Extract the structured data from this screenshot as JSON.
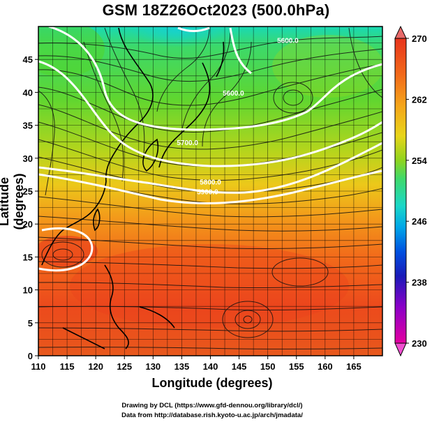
{
  "title": "GSM 18Z26Oct2023 (500.0hPa)",
  "xaxis": {
    "label": "Longitude (degrees)",
    "range": [
      110,
      170
    ],
    "ticks": [
      "110",
      "115",
      "120",
      "125",
      "130",
      "135",
      "140",
      "145",
      "150",
      "155",
      "160",
      "165"
    ]
  },
  "yaxis": {
    "label": "Latitude  (degrees)",
    "range": [
      0,
      50
    ],
    "ticks": [
      "0",
      "5",
      "10",
      "15",
      "20",
      "25",
      "30",
      "35",
      "40",
      "45"
    ]
  },
  "colorbar": {
    "range": [
      230,
      270
    ],
    "ticks": [
      "270",
      "262",
      "254",
      "246",
      "238",
      "230"
    ],
    "colors": [
      "#e400a0",
      "#8a00c8",
      "#1a1ab8",
      "#0050e0",
      "#00a6e8",
      "#1ad7c8",
      "#3fd96a",
      "#6ad126",
      "#a9d71c",
      "#e8d51a",
      "#f5a51a",
      "#f26a1a",
      "#e8341c"
    ]
  },
  "contours": [
    {
      "label": "5600.0",
      "lon": 144.0,
      "lat": 39.5
    },
    {
      "label": "5800.0",
      "lon": 140.0,
      "lat": 26.0
    },
    {
      "label": "5900.0",
      "lon": 139.5,
      "lat": 24.5
    },
    {
      "label": "5600.0",
      "lon": 153.5,
      "lat": 47.5
    },
    {
      "label": "5700.0",
      "lon": 136.0,
      "lat": 32.0
    }
  ],
  "credits": {
    "line1": "Drawing by DCL (https://www.gfd-dennou.org/library/dcl/)",
    "line2": "Data from http://database.rish.kyoto-u.ac.jp/arch/jmadata/"
  }
}
